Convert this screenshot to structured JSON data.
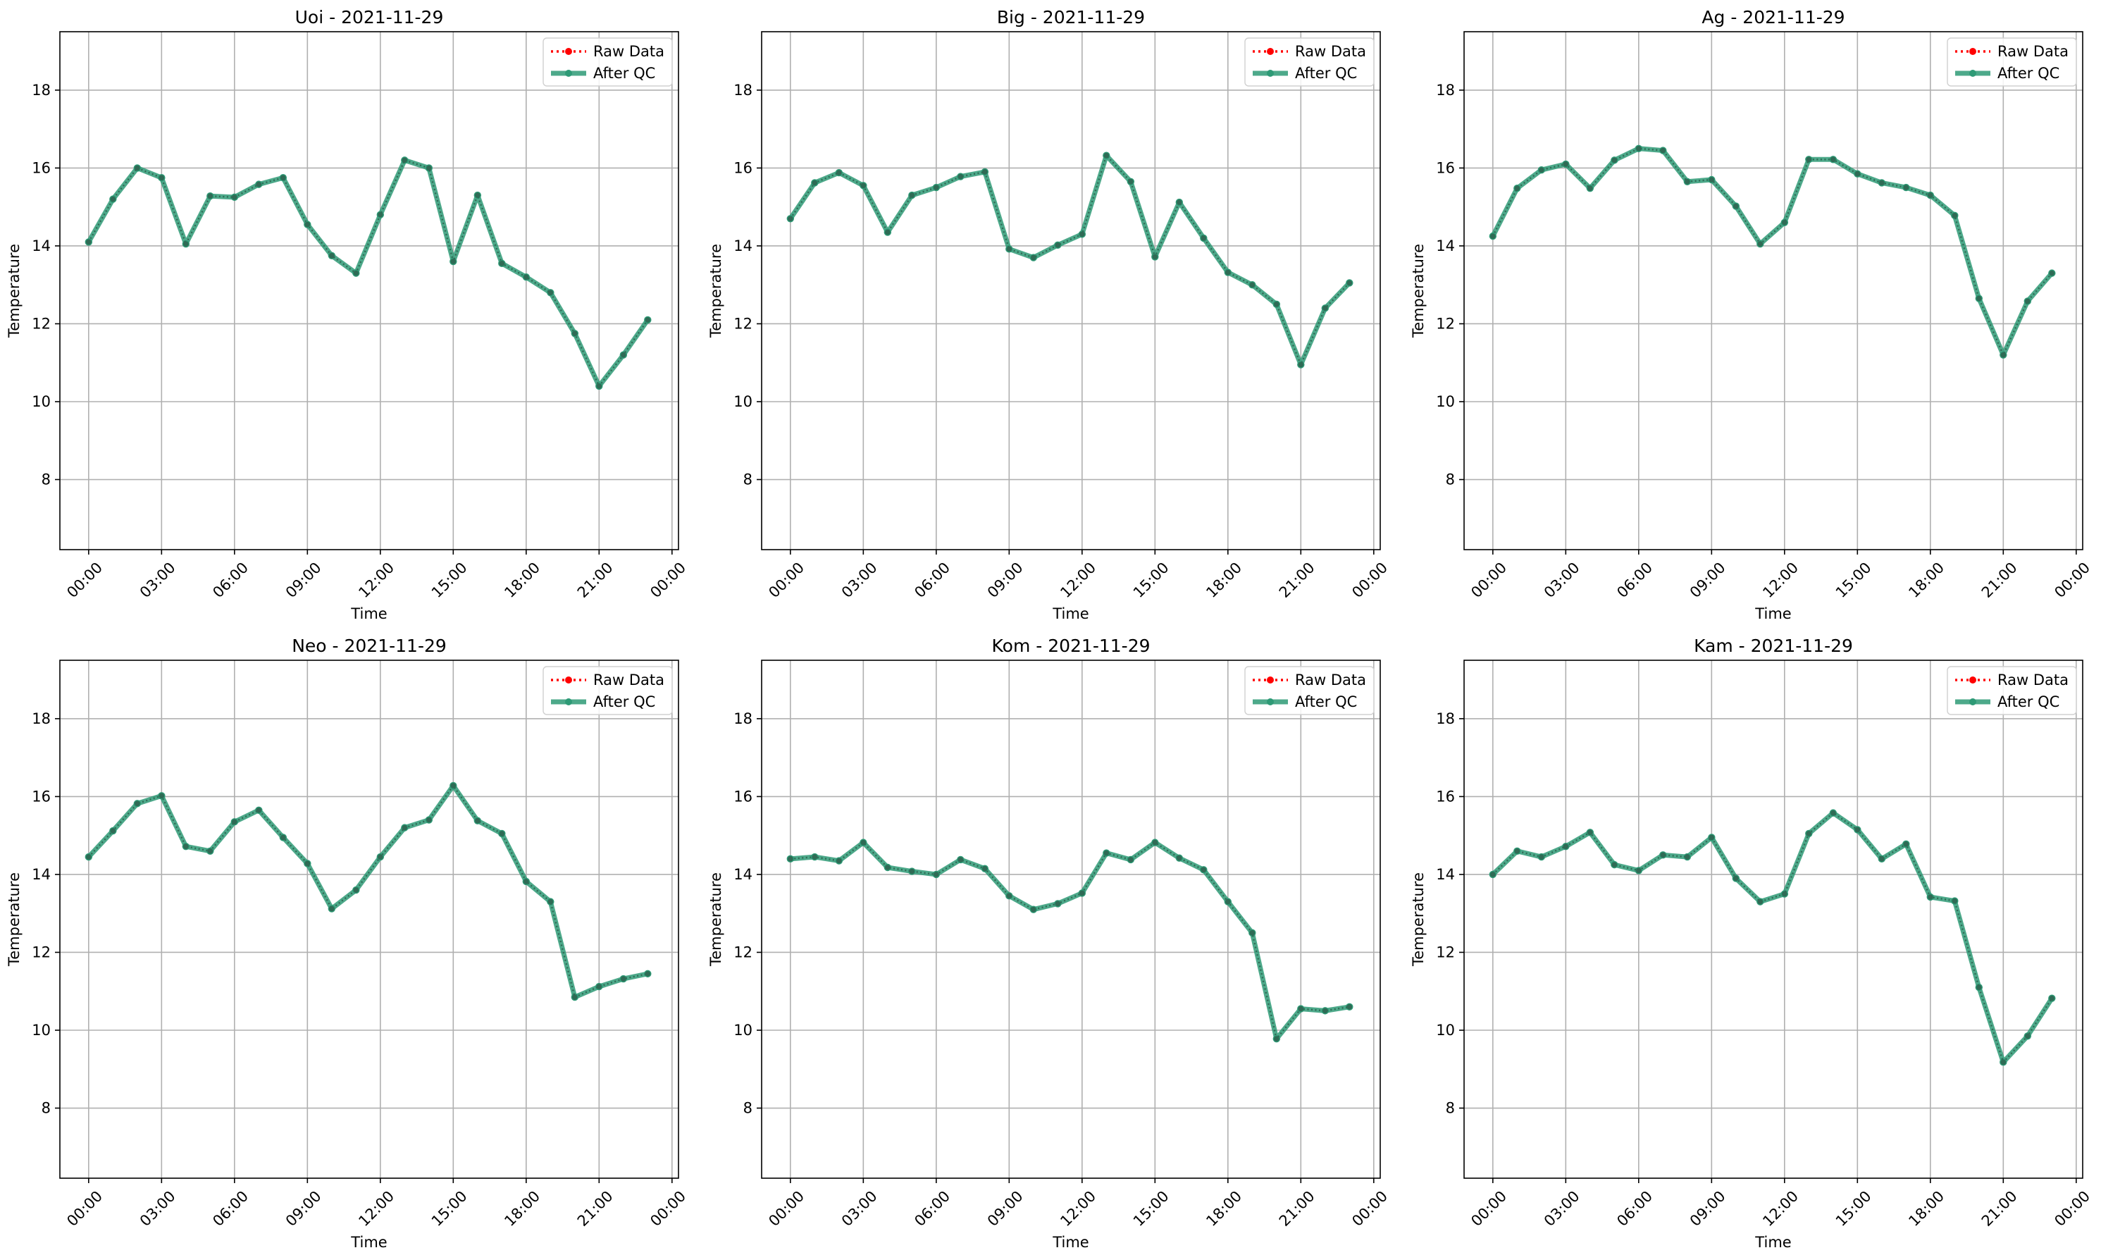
{
  "legend": {
    "raw_label": "Raw Data",
    "qc_label": "After QC"
  },
  "colors": {
    "raw": "#ff0000",
    "qc": "#2e9a76",
    "marker": "#2f6b55",
    "grid": "#b0b0b0"
  },
  "chart_data": [
    {
      "type": "line",
      "title": "Uoi - 2021-11-29",
      "xlabel": "Time",
      "ylabel": "Temperature",
      "xlim": [
        "2021-11-28T22:49",
        "2021-11-30T00:16"
      ],
      "ylim": [
        6.2,
        19.5
      ],
      "yticks": [
        "8",
        "10",
        "12",
        "14",
        "16",
        "18"
      ],
      "xticks": [
        "00:00",
        "03:00",
        "06:00",
        "09:00",
        "12:00",
        "15:00",
        "18:00",
        "21:00",
        "00:00"
      ],
      "grid": true,
      "legend_position": "top-right",
      "x": [
        "00:00",
        "01:00",
        "02:00",
        "03:00",
        "04:00",
        "05:00",
        "06:00",
        "07:00",
        "08:00",
        "09:00",
        "10:00",
        "11:00",
        "12:00",
        "13:00",
        "14:00",
        "15:00",
        "16:00",
        "17:00",
        "18:00",
        "19:00",
        "20:00",
        "21:00",
        "22:00",
        "23:00"
      ],
      "series": [
        {
          "name": "Raw Data",
          "values": [
            14.1,
            15.2,
            16.0,
            15.75,
            14.05,
            15.28,
            15.25,
            15.58,
            15.75,
            14.55,
            13.75,
            13.3,
            14.8,
            16.2,
            16.0,
            13.6,
            15.3,
            13.55,
            13.2,
            12.8,
            11.75,
            10.4,
            11.2,
            12.1
          ]
        },
        {
          "name": "After QC",
          "values": [
            14.1,
            15.2,
            16.0,
            15.75,
            14.05,
            15.28,
            15.25,
            15.58,
            15.75,
            14.55,
            13.75,
            13.3,
            14.8,
            16.2,
            16.0,
            13.6,
            15.3,
            13.55,
            13.2,
            12.8,
            11.75,
            10.4,
            11.2,
            12.1
          ]
        }
      ]
    },
    {
      "type": "line",
      "title": "Big - 2021-11-29",
      "xlabel": "Time",
      "ylabel": "Temperature",
      "xlim": [
        "2021-11-28T22:49",
        "2021-11-30T00:16"
      ],
      "ylim": [
        6.2,
        19.5
      ],
      "yticks": [
        "8",
        "10",
        "12",
        "14",
        "16",
        "18"
      ],
      "xticks": [
        "00:00",
        "03:00",
        "06:00",
        "09:00",
        "12:00",
        "15:00",
        "18:00",
        "21:00",
        "00:00"
      ],
      "grid": true,
      "legend_position": "top-right",
      "x": [
        "00:00",
        "01:00",
        "02:00",
        "03:00",
        "04:00",
        "05:00",
        "06:00",
        "07:00",
        "08:00",
        "09:00",
        "10:00",
        "11:00",
        "12:00",
        "13:00",
        "14:00",
        "15:00",
        "16:00",
        "17:00",
        "18:00",
        "19:00",
        "20:00",
        "21:00",
        "22:00",
        "23:00"
      ],
      "series": [
        {
          "name": "Raw Data",
          "values": [
            14.7,
            15.62,
            15.88,
            15.55,
            14.35,
            15.3,
            15.5,
            15.78,
            15.9,
            13.92,
            13.7,
            14.02,
            14.3,
            16.32,
            15.65,
            13.72,
            15.12,
            14.2,
            13.32,
            13.0,
            12.5,
            10.95,
            12.4,
            13.05
          ]
        },
        {
          "name": "After QC",
          "values": [
            14.7,
            15.62,
            15.88,
            15.55,
            14.35,
            15.3,
            15.5,
            15.78,
            15.9,
            13.92,
            13.7,
            14.02,
            14.3,
            16.32,
            15.65,
            13.72,
            15.12,
            14.2,
            13.32,
            13.0,
            12.5,
            10.95,
            12.4,
            13.05
          ]
        }
      ]
    },
    {
      "type": "line",
      "title": "Ag - 2021-11-29",
      "xlabel": "Time",
      "ylabel": "Temperature",
      "xlim": [
        "2021-11-28T22:49",
        "2021-11-30T00:16"
      ],
      "ylim": [
        6.2,
        19.5
      ],
      "yticks": [
        "8",
        "10",
        "12",
        "14",
        "16",
        "18"
      ],
      "xticks": [
        "00:00",
        "03:00",
        "06:00",
        "09:00",
        "12:00",
        "15:00",
        "18:00",
        "21:00",
        "00:00"
      ],
      "grid": true,
      "legend_position": "top-right",
      "x": [
        "00:00",
        "01:00",
        "02:00",
        "03:00",
        "04:00",
        "05:00",
        "06:00",
        "07:00",
        "08:00",
        "09:00",
        "10:00",
        "11:00",
        "12:00",
        "13:00",
        "14:00",
        "15:00",
        "16:00",
        "17:00",
        "18:00",
        "19:00",
        "20:00",
        "21:00",
        "22:00",
        "23:00"
      ],
      "series": [
        {
          "name": "Raw Data",
          "values": [
            14.25,
            15.48,
            15.95,
            16.1,
            15.48,
            16.2,
            16.5,
            16.45,
            15.65,
            15.7,
            15.02,
            14.05,
            14.6,
            16.22,
            16.22,
            15.85,
            15.62,
            15.5,
            15.3,
            14.78,
            12.65,
            11.2,
            12.58,
            13.3
          ]
        },
        {
          "name": "After QC",
          "values": [
            14.25,
            15.48,
            15.95,
            16.1,
            15.48,
            16.2,
            16.5,
            16.45,
            15.65,
            15.7,
            15.02,
            14.05,
            14.6,
            16.22,
            16.22,
            15.85,
            15.62,
            15.5,
            15.3,
            14.78,
            12.65,
            11.2,
            12.58,
            13.3
          ]
        }
      ]
    },
    {
      "type": "line",
      "title": "Neo - 2021-11-29",
      "xlabel": "Time",
      "ylabel": "Temperature",
      "xlim": [
        "2021-11-28T22:49",
        "2021-11-30T00:16"
      ],
      "ylim": [
        6.2,
        19.5
      ],
      "yticks": [
        "8",
        "10",
        "12",
        "14",
        "16",
        "18"
      ],
      "xticks": [
        "00:00",
        "03:00",
        "06:00",
        "09:00",
        "12:00",
        "15:00",
        "18:00",
        "21:00",
        "00:00"
      ],
      "grid": true,
      "legend_position": "top-right",
      "x": [
        "00:00",
        "01:00",
        "02:00",
        "03:00",
        "04:00",
        "05:00",
        "06:00",
        "07:00",
        "08:00",
        "09:00",
        "10:00",
        "11:00",
        "12:00",
        "13:00",
        "14:00",
        "15:00",
        "16:00",
        "17:00",
        "18:00",
        "19:00",
        "20:00",
        "21:00",
        "22:00",
        "23:00"
      ],
      "series": [
        {
          "name": "Raw Data",
          "values": [
            14.45,
            15.12,
            15.82,
            16.02,
            14.72,
            14.6,
            15.35,
            15.65,
            14.95,
            14.28,
            13.12,
            13.6,
            14.45,
            15.2,
            15.4,
            16.28,
            15.38,
            15.05,
            13.82,
            13.3,
            10.85,
            11.12,
            11.32,
            11.45
          ]
        },
        {
          "name": "After QC",
          "values": [
            14.45,
            15.12,
            15.82,
            16.02,
            14.72,
            14.6,
            15.35,
            15.65,
            14.95,
            14.28,
            13.12,
            13.6,
            14.45,
            15.2,
            15.4,
            16.28,
            15.38,
            15.05,
            13.82,
            13.3,
            10.85,
            11.12,
            11.32,
            11.45
          ]
        }
      ]
    },
    {
      "type": "line",
      "title": "Kom - 2021-11-29",
      "xlabel": "Time",
      "ylabel": "Temperature",
      "xlim": [
        "2021-11-28T22:49",
        "2021-11-30T00:16"
      ],
      "ylim": [
        6.2,
        19.5
      ],
      "yticks": [
        "8",
        "10",
        "12",
        "14",
        "16",
        "18"
      ],
      "xticks": [
        "00:00",
        "03:00",
        "06:00",
        "09:00",
        "12:00",
        "15:00",
        "18:00",
        "21:00",
        "00:00"
      ],
      "grid": true,
      "legend_position": "top-right",
      "x": [
        "00:00",
        "01:00",
        "02:00",
        "03:00",
        "04:00",
        "05:00",
        "06:00",
        "07:00",
        "08:00",
        "09:00",
        "10:00",
        "11:00",
        "12:00",
        "13:00",
        "14:00",
        "15:00",
        "16:00",
        "17:00",
        "18:00",
        "19:00",
        "20:00",
        "21:00",
        "22:00",
        "23:00"
      ],
      "series": [
        {
          "name": "Raw Data",
          "values": [
            14.4,
            14.45,
            14.35,
            14.82,
            14.18,
            14.08,
            14.0,
            14.38,
            14.15,
            13.45,
            13.1,
            13.25,
            13.52,
            14.55,
            14.38,
            14.82,
            14.42,
            14.12,
            13.3,
            12.5,
            9.78,
            10.55,
            10.5,
            10.6
          ]
        },
        {
          "name": "After QC",
          "values": [
            14.4,
            14.45,
            14.35,
            14.82,
            14.18,
            14.08,
            14.0,
            14.38,
            14.15,
            13.45,
            13.1,
            13.25,
            13.52,
            14.55,
            14.38,
            14.82,
            14.42,
            14.12,
            13.3,
            12.5,
            9.78,
            10.55,
            10.5,
            10.6
          ]
        }
      ]
    },
    {
      "type": "line",
      "title": "Kam - 2021-11-29",
      "xlabel": "Time",
      "ylabel": "Temperature",
      "xlim": [
        "2021-11-28T22:49",
        "2021-11-30T00:16"
      ],
      "ylim": [
        6.2,
        19.5
      ],
      "yticks": [
        "8",
        "10",
        "12",
        "14",
        "16",
        "18"
      ],
      "xticks": [
        "00:00",
        "03:00",
        "06:00",
        "09:00",
        "12:00",
        "15:00",
        "18:00",
        "21:00",
        "00:00"
      ],
      "grid": true,
      "legend_position": "top-right",
      "x": [
        "00:00",
        "01:00",
        "02:00",
        "03:00",
        "04:00",
        "05:00",
        "06:00",
        "07:00",
        "08:00",
        "09:00",
        "10:00",
        "11:00",
        "12:00",
        "13:00",
        "14:00",
        "15:00",
        "16:00",
        "17:00",
        "18:00",
        "19:00",
        "20:00",
        "21:00",
        "22:00",
        "23:00"
      ],
      "series": [
        {
          "name": "Raw Data",
          "values": [
            14.0,
            14.6,
            14.45,
            14.72,
            15.08,
            14.25,
            14.1,
            14.5,
            14.45,
            14.95,
            13.9,
            13.3,
            13.5,
            15.05,
            15.58,
            15.15,
            14.4,
            14.78,
            13.42,
            13.32,
            11.1,
            9.18,
            9.85,
            10.82
          ]
        },
        {
          "name": "After QC",
          "values": [
            14.0,
            14.6,
            14.45,
            14.72,
            15.08,
            14.25,
            14.1,
            14.5,
            14.45,
            14.95,
            13.9,
            13.3,
            13.5,
            15.05,
            15.58,
            15.15,
            14.4,
            14.78,
            13.42,
            13.32,
            11.1,
            9.18,
            9.85,
            10.82
          ]
        }
      ]
    }
  ]
}
